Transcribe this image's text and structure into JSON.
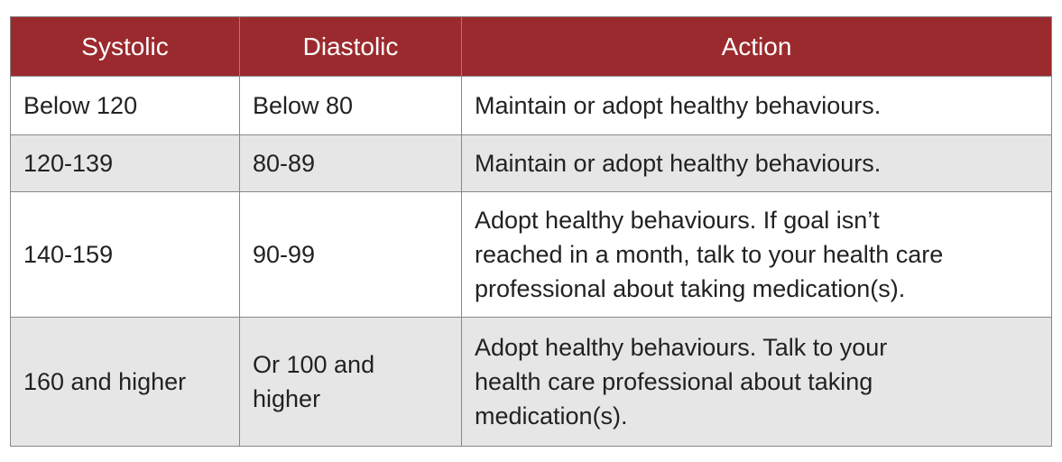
{
  "table": {
    "header": [
      "Systolic",
      "Diastolic",
      "Action"
    ],
    "rows": [
      [
        [
          "Below 120"
        ],
        [
          "Below 80"
        ],
        [
          "Maintain or adopt healthy behaviours."
        ]
      ],
      [
        [
          "120-139"
        ],
        [
          "80-89"
        ],
        [
          "Maintain or adopt healthy behaviours."
        ]
      ],
      [
        [
          "140-159"
        ],
        [
          "90-99"
        ],
        [
          "Adopt healthy behaviours. If goal isn’t",
          "reached in a month, talk to your health care",
          "professional about taking medication(s)."
        ]
      ],
      [
        [
          "160 and higher"
        ],
        [
          "Or 100 and",
          "higher"
        ],
        [
          "Adopt healthy behaviours. Talk to your",
          "health care professional about taking",
          "medication(s)."
        ]
      ]
    ]
  }
}
